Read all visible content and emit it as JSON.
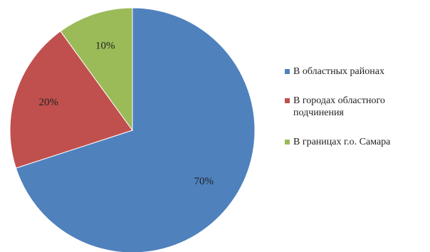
{
  "chart_data": {
    "type": "pie",
    "title": "",
    "categories": [
      "В областных районах",
      "В городах областного подчинения",
      "В границах г.о. Самара"
    ],
    "values": [
      70,
      20,
      10
    ],
    "data_labels": [
      "70%",
      "20%",
      "10%"
    ],
    "colors": [
      "#4f81bd",
      "#c0504d",
      "#9bbb59"
    ],
    "legend": {
      "position": "right",
      "entries": [
        {
          "lines": [
            "В областных районах"
          ]
        },
        {
          "lines": [
            "В городах областного",
            "подчинения"
          ]
        },
        {
          "lines": [
            "В границах г.о. Самара"
          ]
        }
      ]
    }
  }
}
